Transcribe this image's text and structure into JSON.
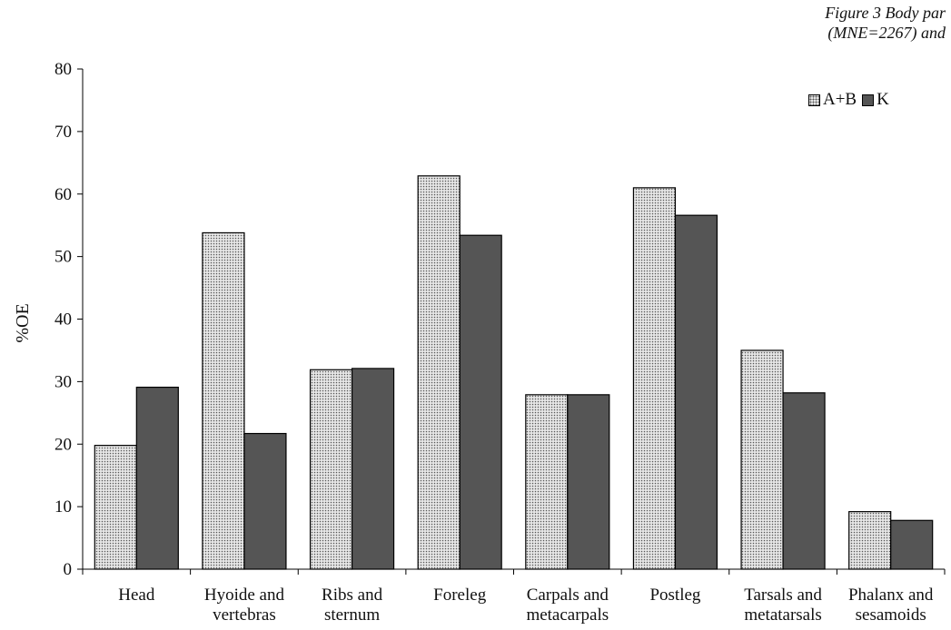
{
  "caption": {
    "line1": "Figure 3 Body par",
    "line2": "(MNE=2267) and"
  },
  "colors": {
    "series_ab_fill": "#e6e6e6",
    "series_ab_dots": "#555555",
    "series_k_fill": "#555555",
    "axis": "#000000"
  },
  "chart_data": {
    "type": "bar",
    "title": "",
    "xlabel": "",
    "ylabel": "%OE",
    "ylim": [
      0,
      80
    ],
    "yticks": [
      0,
      10,
      20,
      30,
      40,
      50,
      60,
      70,
      80
    ],
    "grid": false,
    "legend_position": "top-right",
    "categories": [
      [
        "Head"
      ],
      [
        "Hyoide and",
        "vertebras"
      ],
      [
        "Ribs and",
        "sternum"
      ],
      [
        "Foreleg"
      ],
      [
        "Carpals and",
        "metacarpals"
      ],
      [
        "Postleg"
      ],
      [
        "Tarsals and",
        "metatarsals"
      ],
      [
        "Phalanx and",
        "sesamoids"
      ]
    ],
    "series": [
      {
        "name": "A+B",
        "values": [
          19.8,
          53.8,
          31.9,
          62.9,
          27.9,
          61.0,
          35.0,
          9.2
        ]
      },
      {
        "name": "K",
        "values": [
          29.1,
          21.7,
          32.1,
          53.4,
          27.9,
          56.6,
          28.2,
          7.8
        ]
      }
    ]
  }
}
